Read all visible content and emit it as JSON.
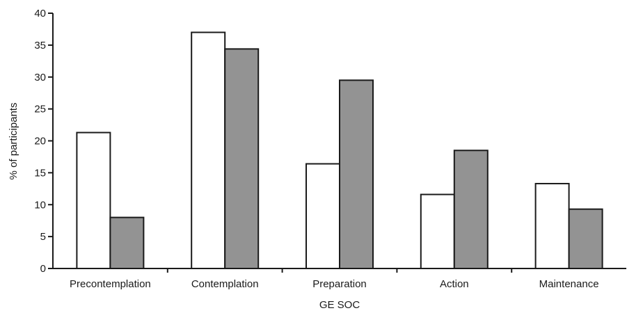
{
  "chart_data": {
    "type": "bar",
    "title": "",
    "xlabel": "GE SOC",
    "ylabel": "% of participants",
    "categories": [
      "Precontemplation",
      "Contemplation",
      "Preparation",
      "Action",
      "Maintenance"
    ],
    "series": [
      {
        "values": [
          21.3,
          37.0,
          16.4,
          11.6,
          13.3
        ]
      },
      {
        "values": [
          8.0,
          34.4,
          29.5,
          18.5,
          9.3
        ]
      }
    ],
    "ylim": [
      0,
      40
    ],
    "yticks": [
      0,
      5,
      10,
      15,
      20,
      25,
      30,
      35,
      40
    ],
    "grid": false,
    "legend": "none",
    "colors": {
      "series": [
        "#ffffff",
        "#939393"
      ],
      "stroke": "#1a1a1a"
    }
  }
}
